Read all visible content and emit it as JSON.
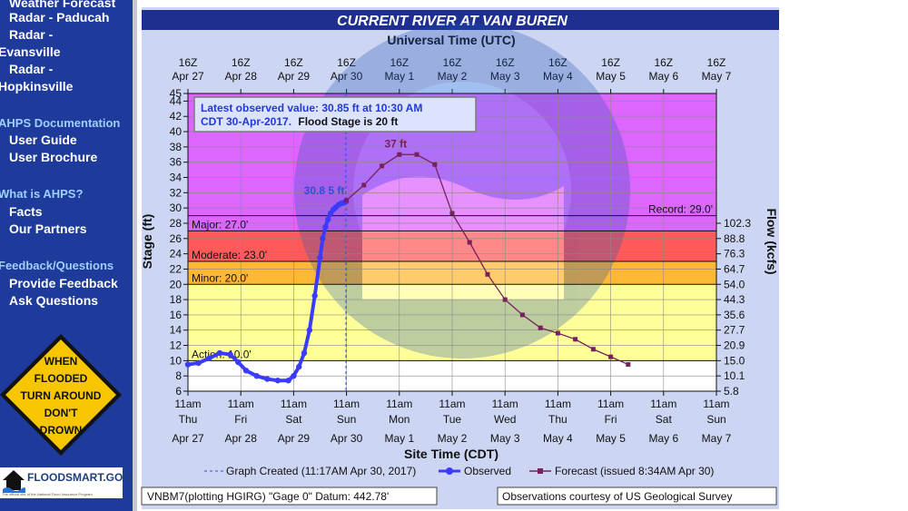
{
  "sidebar": {
    "items": [
      {
        "label": "Weather Forecast"
      },
      {
        "label": "Radar - Paducah"
      },
      {
        "label": "Radar -"
      },
      {
        "label": "Evansville"
      },
      {
        "label": "Radar -"
      },
      {
        "label": "Hopkinsville"
      }
    ],
    "ahps_header": "AHPS Documentation",
    "ahps_items": [
      {
        "label": "User Guide"
      },
      {
        "label": "User Brochure"
      }
    ],
    "what_header": "What is AHPS?",
    "what_items": [
      {
        "label": "Facts"
      },
      {
        "label": "Our Partners"
      }
    ],
    "feedback_header": "Feedback/Questions",
    "feedback_items": [
      {
        "label": "Provide Feedback"
      },
      {
        "label": "Ask Questions"
      }
    ],
    "sign_lines": [
      "WHEN",
      "FLOODED",
      "TURN AROUND",
      "DON'T",
      "DROWN"
    ],
    "floodsmart_label": "FLOODSMART.GOV",
    "floodsmart_sub": "The official site of the National Flood Insurance Program"
  },
  "chart_data": {
    "type": "line",
    "title": "CURRENT RIVER AT VAN BUREN",
    "top_axis_title": "Universal Time (UTC)",
    "top_ticks": [
      {
        "hour": "16Z",
        "date": "Apr 27"
      },
      {
        "hour": "16Z",
        "date": "Apr 28"
      },
      {
        "hour": "16Z",
        "date": "Apr 29"
      },
      {
        "hour": "16Z",
        "date": "Apr 30"
      },
      {
        "hour": "16Z",
        "date": "May 1"
      },
      {
        "hour": "16Z",
        "date": "May 2"
      },
      {
        "hour": "16Z",
        "date": "May 3"
      },
      {
        "hour": "16Z",
        "date": "May 4"
      },
      {
        "hour": "16Z",
        "date": "May 5"
      },
      {
        "hour": "16Z",
        "date": "May 6"
      },
      {
        "hour": "16Z",
        "date": "May 7"
      }
    ],
    "bottom_axis_title": "Site Time (CDT)",
    "bottom_ticks": [
      {
        "time": "11am",
        "day": "Thu",
        "date": "Apr 27"
      },
      {
        "time": "11am",
        "day": "Fri",
        "date": "Apr 28"
      },
      {
        "time": "11am",
        "day": "Sat",
        "date": "Apr 29"
      },
      {
        "time": "11am",
        "day": "Sun",
        "date": "Apr 30"
      },
      {
        "time": "11am",
        "day": "Mon",
        "date": "May 1"
      },
      {
        "time": "11am",
        "day": "Tue",
        "date": "May 2"
      },
      {
        "time": "11am",
        "day": "Wed",
        "date": "May 3"
      },
      {
        "time": "11am",
        "day": "Thu",
        "date": "May 4"
      },
      {
        "time": "11am",
        "day": "Fri",
        "date": "May 5"
      },
      {
        "time": "11am",
        "day": "Sat",
        "date": "May 6"
      },
      {
        "time": "11am",
        "day": "Sun",
        "date": "May 7"
      }
    ],
    "x_range_days": [
      0,
      10
    ],
    "ylabel": "Stage (ft)",
    "ylim": [
      6,
      45
    ],
    "y_ticks": [
      6,
      8,
      10,
      12,
      14,
      16,
      18,
      20,
      22,
      24,
      26,
      28,
      30,
      32,
      34,
      36,
      38,
      40,
      42,
      44,
      45
    ],
    "y2label": "Flow (kcfs)",
    "flow_ticks": [
      {
        "stage": 6,
        "label": "5.8"
      },
      {
        "stage": 8,
        "label": "10.1"
      },
      {
        "stage": 10,
        "label": "15.0"
      },
      {
        "stage": 12,
        "label": "20.9"
      },
      {
        "stage": 14,
        "label": "27.7"
      },
      {
        "stage": 16,
        "label": "35.6"
      },
      {
        "stage": 18,
        "label": "44.3"
      },
      {
        "stage": 20,
        "label": "54.0"
      },
      {
        "stage": 22,
        "label": "64.7"
      },
      {
        "stage": 24,
        "label": "76.3"
      },
      {
        "stage": 26,
        "label": "88.8"
      },
      {
        "stage": 28,
        "label": "102.3"
      }
    ],
    "bands": [
      {
        "name": "Action",
        "from": 10,
        "to": 20,
        "color": "#ffff99"
      },
      {
        "name": "Minor",
        "from": 20,
        "to": 23,
        "color": "#ffb833"
      },
      {
        "name": "Moderate",
        "from": 23,
        "to": 27,
        "color": "#ff5a5a"
      },
      {
        "name": "Major",
        "from": 27,
        "to": 45,
        "color": "#dd66ff"
      }
    ],
    "thresholds": [
      {
        "label": "Action: 10.0'",
        "value": 10
      },
      {
        "label": "Minor: 20.0'",
        "value": 20
      },
      {
        "label": "Moderate: 23.0'",
        "value": 23
      },
      {
        "label": "Major: 27.0'",
        "value": 27
      }
    ],
    "record": {
      "label": "Record: 29.0'",
      "value": 29
    },
    "info_box": {
      "line1": "Latest observed value: 30.85 ft at 10:30 AM",
      "line2_blue": "CDT 30-Apr-2017.",
      "line2_black": "Flood Stage is 20 ft"
    },
    "created_day": 2.99,
    "observed_label": "30.8 5 ft",
    "peak_label": "37 ft",
    "series": [
      {
        "name": "Observed",
        "color": "#3b3bff",
        "x": [
          0,
          0.2,
          0.4,
          0.6,
          0.8,
          0.95,
          1.1,
          1.3,
          1.5,
          1.7,
          1.9,
          2.0,
          2.1,
          2.2,
          2.3,
          2.4,
          2.5,
          2.55,
          2.6,
          2.65,
          2.7,
          2.75,
          2.8,
          2.85,
          2.9,
          2.95,
          2.99
        ],
        "y": [
          9.5,
          9.7,
          10.3,
          11.0,
          10.8,
          9.8,
          8.7,
          8.0,
          7.6,
          7.4,
          7.4,
          8.0,
          9.2,
          11.0,
          14.0,
          18.5,
          23.5,
          26.0,
          27.5,
          28.5,
          29.3,
          29.8,
          30.1,
          30.4,
          30.6,
          30.7,
          30.85
        ]
      },
      {
        "name": "Forecast",
        "color": "#77215a",
        "x": [
          3.0,
          3.33,
          3.67,
          4.0,
          4.33,
          4.67,
          5.0,
          5.33,
          5.67,
          6.0,
          6.33,
          6.67,
          7.0,
          7.33,
          7.67,
          8.0,
          8.33
        ],
        "y": [
          31.0,
          33.0,
          35.5,
          37.0,
          37.0,
          35.7,
          29.3,
          25.5,
          21.3,
          18.0,
          16.0,
          14.3,
          13.6,
          12.8,
          11.5,
          10.5,
          9.5
        ]
      }
    ],
    "legend": {
      "graph_created": "Graph Created (11:17AM Apr 30, 2017)",
      "observed": "Observed",
      "forecast": "Forecast (issued 8:34AM Apr 30)"
    },
    "footer_left": "VNBM7(plotting HGIRG) \"Gage 0\" Datum: 442.78'",
    "footer_right": "Observations courtesy of US Geological Survey"
  }
}
